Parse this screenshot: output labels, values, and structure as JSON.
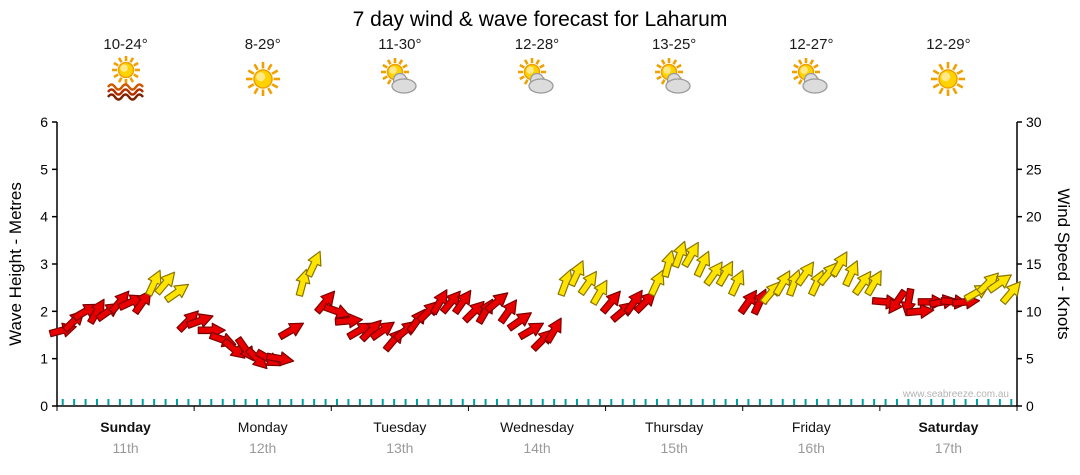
{
  "title": "7 day wind & wave forecast for Laharum",
  "chart_data": {
    "type": "wind-arrow-series",
    "watermark": "www.seabreeze.com.au",
    "left_axis": {
      "label": "Wave Height - Metres",
      "min": 0,
      "max": 6,
      "ticks": [
        0,
        1,
        2,
        3,
        4,
        5,
        6
      ]
    },
    "right_axis": {
      "label": "Wind Speed - Knots",
      "min": 0,
      "max": 30,
      "ticks": [
        0,
        5,
        10,
        15,
        20,
        25,
        30
      ]
    },
    "wind_colors": {
      "threshold_knots": 12,
      "low": {
        "fill": "#e80000",
        "stroke": "#7d0000"
      },
      "high": {
        "fill": "#ffe400",
        "stroke": "#8a7500"
      }
    },
    "minor_tick_color": "#00a0a0",
    "days": [
      {
        "name": "Sunday",
        "date": "11th",
        "weekend": true,
        "temp": "10-24°",
        "icon": "sun-waves",
        "wind_knots": [
          8,
          9,
          10,
          10,
          10,
          11,
          11,
          11,
          13,
          13,
          12,
          9
        ],
        "wind_dir": [
          75,
          45,
          60,
          30,
          55,
          40,
          65,
          35,
          25,
          40,
          55,
          45
        ]
      },
      {
        "name": "Monday",
        "date": "12th",
        "weekend": false,
        "temp": "8-29°",
        "icon": "sun",
        "wind_knots": [
          9,
          8,
          7,
          6,
          6,
          5,
          5,
          5,
          8,
          13,
          15,
          11
        ],
        "wind_dir": [
          70,
          90,
          110,
          130,
          145,
          135,
          120,
          100,
          60,
          15,
          25,
          40
        ]
      },
      {
        "name": "Tuesday",
        "date": "13th",
        "weekend": false,
        "temp": "11-30°",
        "icon": "sun-cloud",
        "wind_knots": [
          10,
          9,
          8,
          8,
          8,
          7,
          8,
          9,
          10,
          11,
          11,
          11
        ],
        "wind_dir": [
          110,
          85,
          60,
          45,
          55,
          40,
          50,
          35,
          45,
          30,
          40,
          35
        ]
      },
      {
        "name": "Wednesday",
        "date": "14th",
        "weekend": false,
        "temp": "12-28°",
        "icon": "sun-cloud",
        "wind_knots": [
          10,
          10,
          11,
          10,
          9,
          8,
          7,
          8,
          13,
          14,
          13,
          12
        ],
        "wind_dir": [
          45,
          30,
          50,
          35,
          55,
          60,
          45,
          30,
          20,
          25,
          35,
          30
        ]
      },
      {
        "name": "Thursday",
        "date": "15th",
        "weekend": false,
        "temp": "13-25°",
        "icon": "sun-cloud",
        "wind_knots": [
          11,
          10,
          11,
          11,
          13,
          15,
          16,
          16,
          15,
          14,
          14,
          13
        ],
        "wind_dir": [
          40,
          50,
          35,
          45,
          25,
          15,
          20,
          30,
          25,
          35,
          30,
          25
        ]
      },
      {
        "name": "Friday",
        "date": "16th",
        "weekend": false,
        "temp": "12-27°",
        "icon": "sun-cloud",
        "wind_knots": [
          11,
          11,
          12,
          13,
          13,
          14,
          13,
          14,
          15,
          14,
          13,
          13
        ],
        "wind_dir": [
          35,
          25,
          40,
          30,
          20,
          35,
          25,
          40,
          30,
          25,
          35,
          30
        ]
      },
      {
        "name": "Saturday",
        "date": "17th",
        "weekend": true,
        "temp": "12-29°",
        "icon": "sun",
        "wind_knots": [
          11,
          11,
          11,
          10,
          11,
          11,
          11,
          11,
          12,
          13,
          13,
          12
        ],
        "wind_dir": [
          95,
          215,
          190,
          85,
          90,
          80,
          95,
          85,
          60,
          45,
          55,
          40
        ]
      }
    ]
  }
}
